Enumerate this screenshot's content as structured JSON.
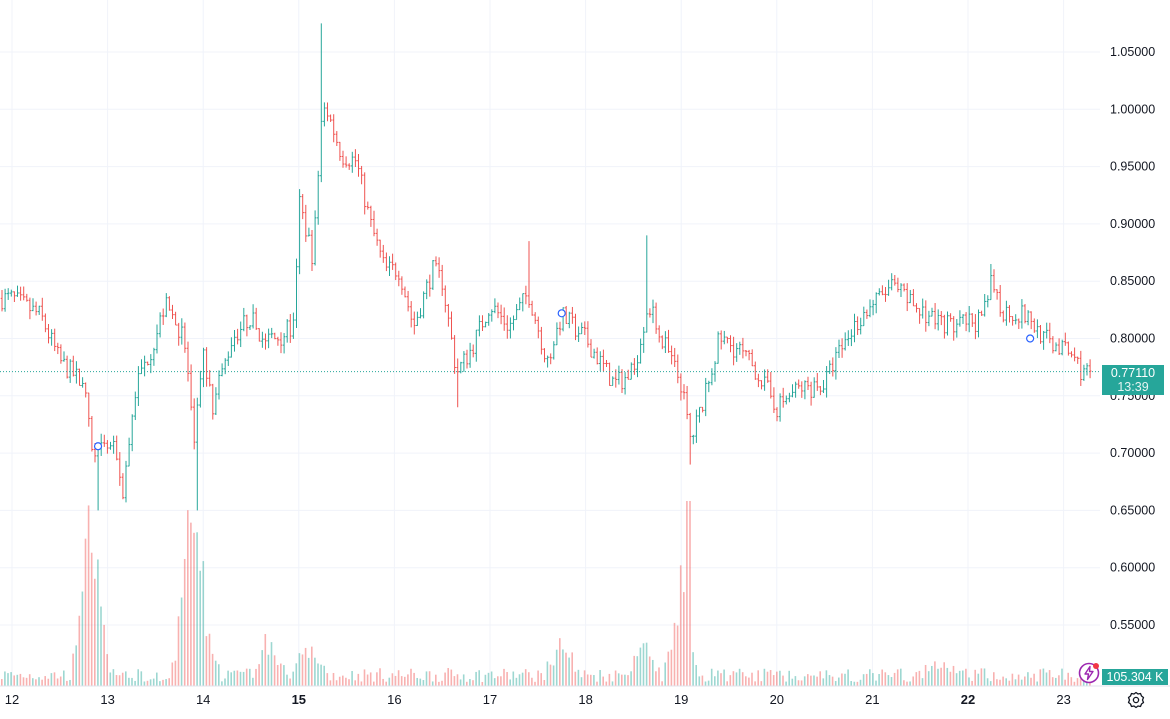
{
  "chart_data": {
    "type": "candlestick",
    "x_labels": [
      "12",
      "13",
      "14",
      "15",
      "16",
      "17",
      "18",
      "19",
      "20",
      "21",
      "22",
      "23"
    ],
    "x_bold_labels": [
      "15",
      "22"
    ],
    "y_tick_labels": [
      "1.05000",
      "1.00000",
      "0.95000",
      "0.90000",
      "0.85000",
      "0.80000",
      "0.75000",
      "0.70000",
      "0.65000",
      "0.60000",
      "0.55000"
    ],
    "ylim": [
      0.5,
      1.09
    ],
    "grid": true,
    "last_price": 0.7711,
    "last_price_label": "0.77110",
    "countdown_label": "13:39",
    "volume_label": "105.304 K",
    "up_color": "#26a69a",
    "down_color": "#ef5350",
    "price_path": [
      [
        12.0,
        0.835
      ],
      [
        12.3,
        0.82
      ],
      [
        12.5,
        0.78
      ],
      [
        12.75,
        0.76
      ],
      [
        12.85,
        0.69
      ],
      [
        12.95,
        0.705
      ],
      [
        13.1,
        0.7
      ],
      [
        13.15,
        0.66
      ],
      [
        13.3,
        0.76
      ],
      [
        13.5,
        0.8
      ],
      [
        13.6,
        0.83
      ],
      [
        13.8,
        0.8
      ],
      [
        13.85,
        0.76
      ],
      [
        13.9,
        0.7
      ],
      [
        14.0,
        0.79
      ],
      [
        14.1,
        0.74
      ],
      [
        14.3,
        0.8
      ],
      [
        14.5,
        0.82
      ],
      [
        14.6,
        0.8
      ],
      [
        14.75,
        0.8
      ],
      [
        14.95,
        0.81
      ],
      [
        15.0,
        0.92
      ],
      [
        15.15,
        0.87
      ],
      [
        15.25,
        1.01
      ],
      [
        15.45,
        0.96
      ],
      [
        15.6,
        0.955
      ],
      [
        15.75,
        0.9
      ],
      [
        15.9,
        0.86
      ],
      [
        16.05,
        0.86
      ],
      [
        16.2,
        0.81
      ],
      [
        16.4,
        0.86
      ],
      [
        16.5,
        0.85
      ],
      [
        16.65,
        0.77
      ],
      [
        16.8,
        0.79
      ],
      [
        17.0,
        0.83
      ],
      [
        17.2,
        0.81
      ],
      [
        17.4,
        0.84
      ],
      [
        17.6,
        0.78
      ],
      [
        17.75,
        0.82
      ],
      [
        18.0,
        0.8
      ],
      [
        18.3,
        0.76
      ],
      [
        18.5,
        0.77
      ],
      [
        18.65,
        0.83
      ],
      [
        18.85,
        0.79
      ],
      [
        19.0,
        0.76
      ],
      [
        19.1,
        0.71
      ],
      [
        19.25,
        0.75
      ],
      [
        19.4,
        0.8
      ],
      [
        19.6,
        0.79
      ],
      [
        19.8,
        0.77
      ],
      [
        20.0,
        0.74
      ],
      [
        20.2,
        0.755
      ],
      [
        20.5,
        0.76
      ],
      [
        20.6,
        0.78
      ],
      [
        20.8,
        0.81
      ],
      [
        21.0,
        0.83
      ],
      [
        21.2,
        0.845
      ],
      [
        21.5,
        0.825
      ],
      [
        21.7,
        0.815
      ],
      [
        21.9,
        0.81
      ],
      [
        22.0,
        0.815
      ],
      [
        22.15,
        0.815
      ],
      [
        22.25,
        0.85
      ],
      [
        22.35,
        0.825
      ],
      [
        22.6,
        0.82
      ],
      [
        22.8,
        0.8
      ],
      [
        23.0,
        0.79
      ],
      [
        23.1,
        0.785
      ],
      [
        23.2,
        0.77
      ],
      [
        23.3,
        0.7711
      ]
    ],
    "spikes": [
      [
        12.9,
        0.65
      ],
      [
        13.95,
        0.65
      ],
      [
        15.25,
        1.075
      ],
      [
        16.65,
        0.74
      ],
      [
        17.4,
        0.885
      ],
      [
        18.65,
        0.89
      ],
      [
        19.1,
        0.69
      ],
      [
        22.25,
        0.865
      ]
    ],
    "volume_spikes": [
      [
        12.8,
        3.5
      ],
      [
        12.85,
        4.1
      ],
      [
        13.85,
        3.8
      ],
      [
        13.9,
        3.0
      ],
      [
        14.0,
        2.2
      ],
      [
        14.7,
        1.7
      ],
      [
        15.1,
        1.2
      ],
      [
        17.75,
        1.6
      ],
      [
        18.6,
        1.4
      ],
      [
        19.0,
        4.0
      ],
      [
        21.7,
        0.7
      ]
    ]
  }
}
